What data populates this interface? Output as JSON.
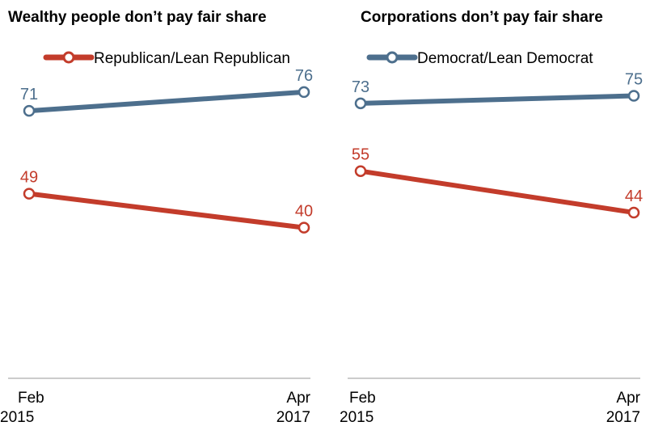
{
  "colors": {
    "republican": "#c33c2b",
    "democrat": "#4d6f8d",
    "axis": "#9a9a9a"
  },
  "legend": [
    {
      "key": "republican",
      "label": "Republican/Lean Republican"
    },
    {
      "key": "democrat",
      "label": "Democrat/Lean Democrat"
    }
  ],
  "chart_data": [
    {
      "type": "line",
      "title": "Wealthy people don’t pay fair share",
      "categories": [
        [
          "Feb",
          "2015"
        ],
        [
          "Apr",
          "2017"
        ]
      ],
      "ylim": [
        0,
        100
      ],
      "grid": false,
      "legend_position": "top",
      "series": [
        {
          "key": "democrat",
          "name": "Democrat/Lean Democrat",
          "values": [
            71,
            76
          ]
        },
        {
          "key": "republican",
          "name": "Republican/Lean Republican",
          "values": [
            49,
            40
          ]
        }
      ]
    },
    {
      "type": "line",
      "title": "Corporations don’t pay fair share",
      "categories": [
        [
          "Feb",
          "2015"
        ],
        [
          "Apr",
          "2017"
        ]
      ],
      "ylim": [
        0,
        100
      ],
      "grid": false,
      "legend_position": "top",
      "series": [
        {
          "key": "democrat",
          "name": "Democrat/Lean Democrat",
          "values": [
            73,
            75
          ]
        },
        {
          "key": "republican",
          "name": "Republican/Lean Republican",
          "values": [
            55,
            44
          ]
        }
      ]
    }
  ]
}
